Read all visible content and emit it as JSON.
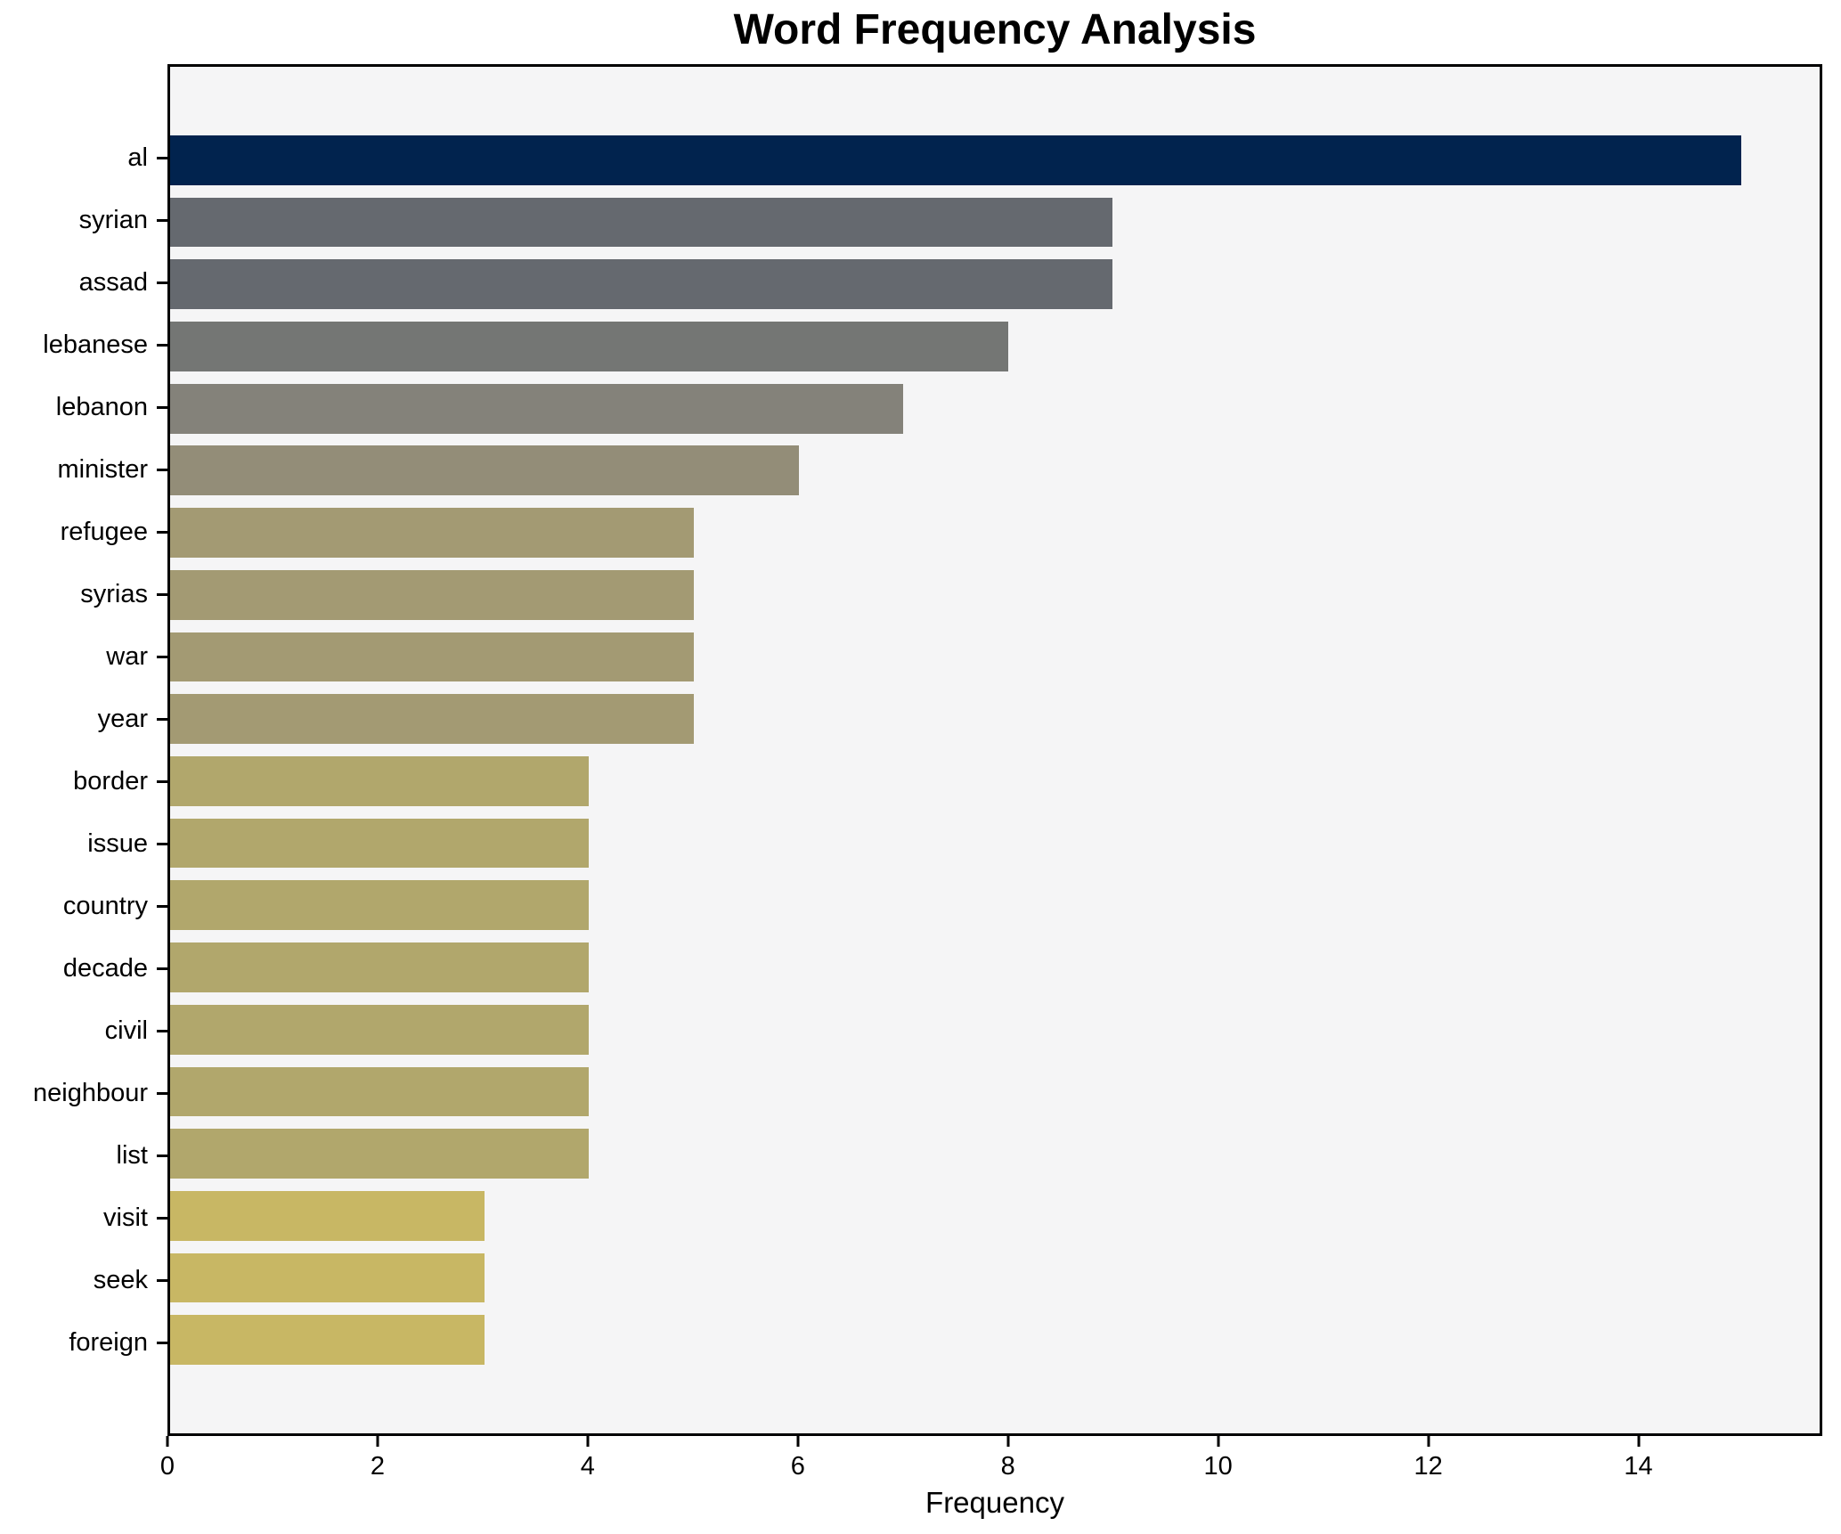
{
  "title": "Word Frequency Analysis",
  "xlabel": "Frequency",
  "chart_data": {
    "type": "bar",
    "orientation": "horizontal",
    "title": "Word Frequency Analysis",
    "xlabel": "Frequency",
    "ylabel": "",
    "categories": [
      "al",
      "syrian",
      "assad",
      "lebanese",
      "lebanon",
      "minister",
      "refugee",
      "syrias",
      "war",
      "year",
      "border",
      "issue",
      "country",
      "decade",
      "civil",
      "neighbour",
      "list",
      "visit",
      "seek",
      "foreign"
    ],
    "values": [
      15,
      9,
      9,
      8,
      7,
      6,
      5,
      5,
      5,
      5,
      4,
      4,
      4,
      4,
      4,
      4,
      4,
      3,
      3,
      3
    ],
    "bar_colors": [
      "#01234e",
      "#65696f",
      "#65696f",
      "#747674",
      "#84827a",
      "#938d78",
      "#a39a73",
      "#a39a73",
      "#a39a73",
      "#a39a73",
      "#b1a76c",
      "#b1a76c",
      "#b1a76c",
      "#b1a76c",
      "#b1a76c",
      "#b1a76c",
      "#b1a76c",
      "#c8b764",
      "#c8b764",
      "#c8b764"
    ],
    "xlim": [
      0,
      15.75
    ],
    "xticks": [
      0,
      2,
      4,
      6,
      8,
      10,
      12,
      14
    ],
    "grid": false,
    "legend": null,
    "plot_bg": "#f5f5f6",
    "figure_bg": "#ffffff",
    "spine_color": "#000000",
    "bar_height_fraction": 0.8
  }
}
